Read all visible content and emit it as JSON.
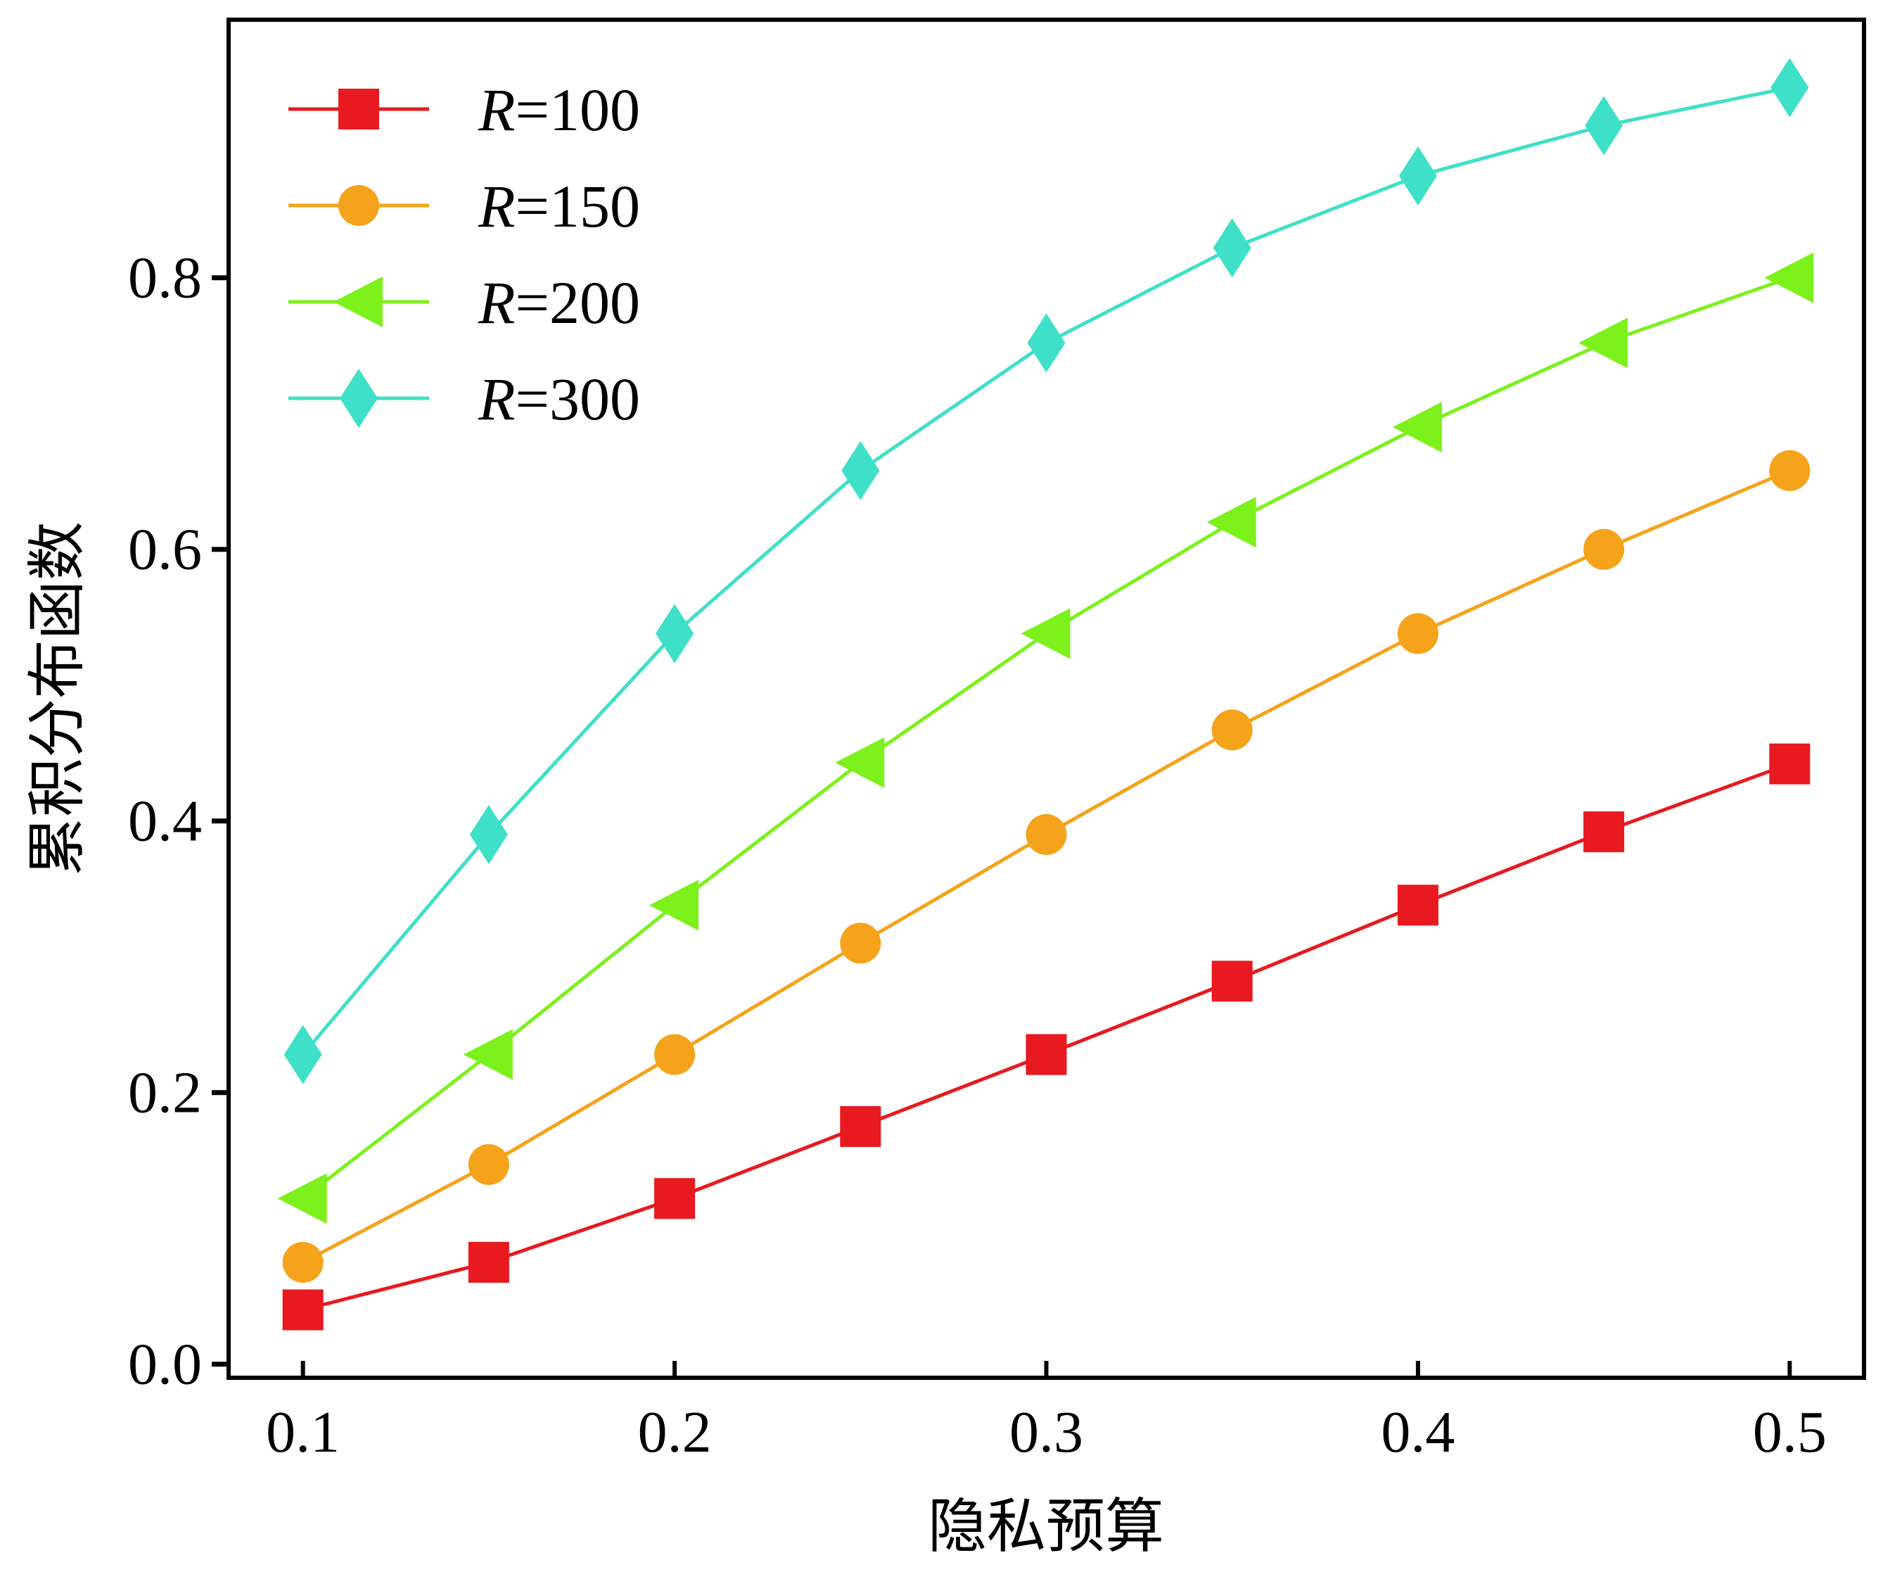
{
  "chart_data": {
    "type": "line",
    "xlabel": "隐私预算",
    "ylabel": "累积分布函数",
    "x": [
      0.1,
      0.15,
      0.2,
      0.25,
      0.3,
      0.35,
      0.4,
      0.45,
      0.5
    ],
    "xticks": [
      "0.1",
      "0.2",
      "0.3",
      "0.4",
      "0.5"
    ],
    "xtick_values": [
      0.1,
      0.2,
      0.3,
      0.4,
      0.5
    ],
    "yticks": [
      "0.0",
      "0.2",
      "0.4",
      "0.6",
      "0.8"
    ],
    "ytick_values": [
      0.0,
      0.2,
      0.4,
      0.6,
      0.8
    ],
    "xlim": [
      0.08,
      0.52
    ],
    "ylim": [
      -0.01,
      0.99
    ],
    "grid": false,
    "legend_position": "top-left",
    "series": [
      {
        "name_prefix": "R",
        "name_suffix": "=100",
        "color": "#e8191f",
        "marker": "square",
        "values": [
          0.04,
          0.075,
          0.122,
          0.175,
          0.228,
          0.282,
          0.338,
          0.392,
          0.442
        ]
      },
      {
        "name_prefix": "R",
        "name_suffix": "=150",
        "color": "#f5a31a",
        "marker": "circle",
        "values": [
          0.075,
          0.147,
          0.228,
          0.31,
          0.39,
          0.467,
          0.538,
          0.6,
          0.658
        ]
      },
      {
        "name_prefix": "R",
        "name_suffix": "=200",
        "color": "#7cf11c",
        "marker": "triangle-left",
        "values": [
          0.122,
          0.228,
          0.338,
          0.443,
          0.538,
          0.62,
          0.69,
          0.752,
          0.8
        ]
      },
      {
        "name_prefix": "R",
        "name_suffix": "=300",
        "color": "#3ee0c8",
        "marker": "diamond",
        "values": [
          0.228,
          0.39,
          0.538,
          0.658,
          0.752,
          0.822,
          0.875,
          0.912,
          0.94
        ]
      }
    ]
  }
}
